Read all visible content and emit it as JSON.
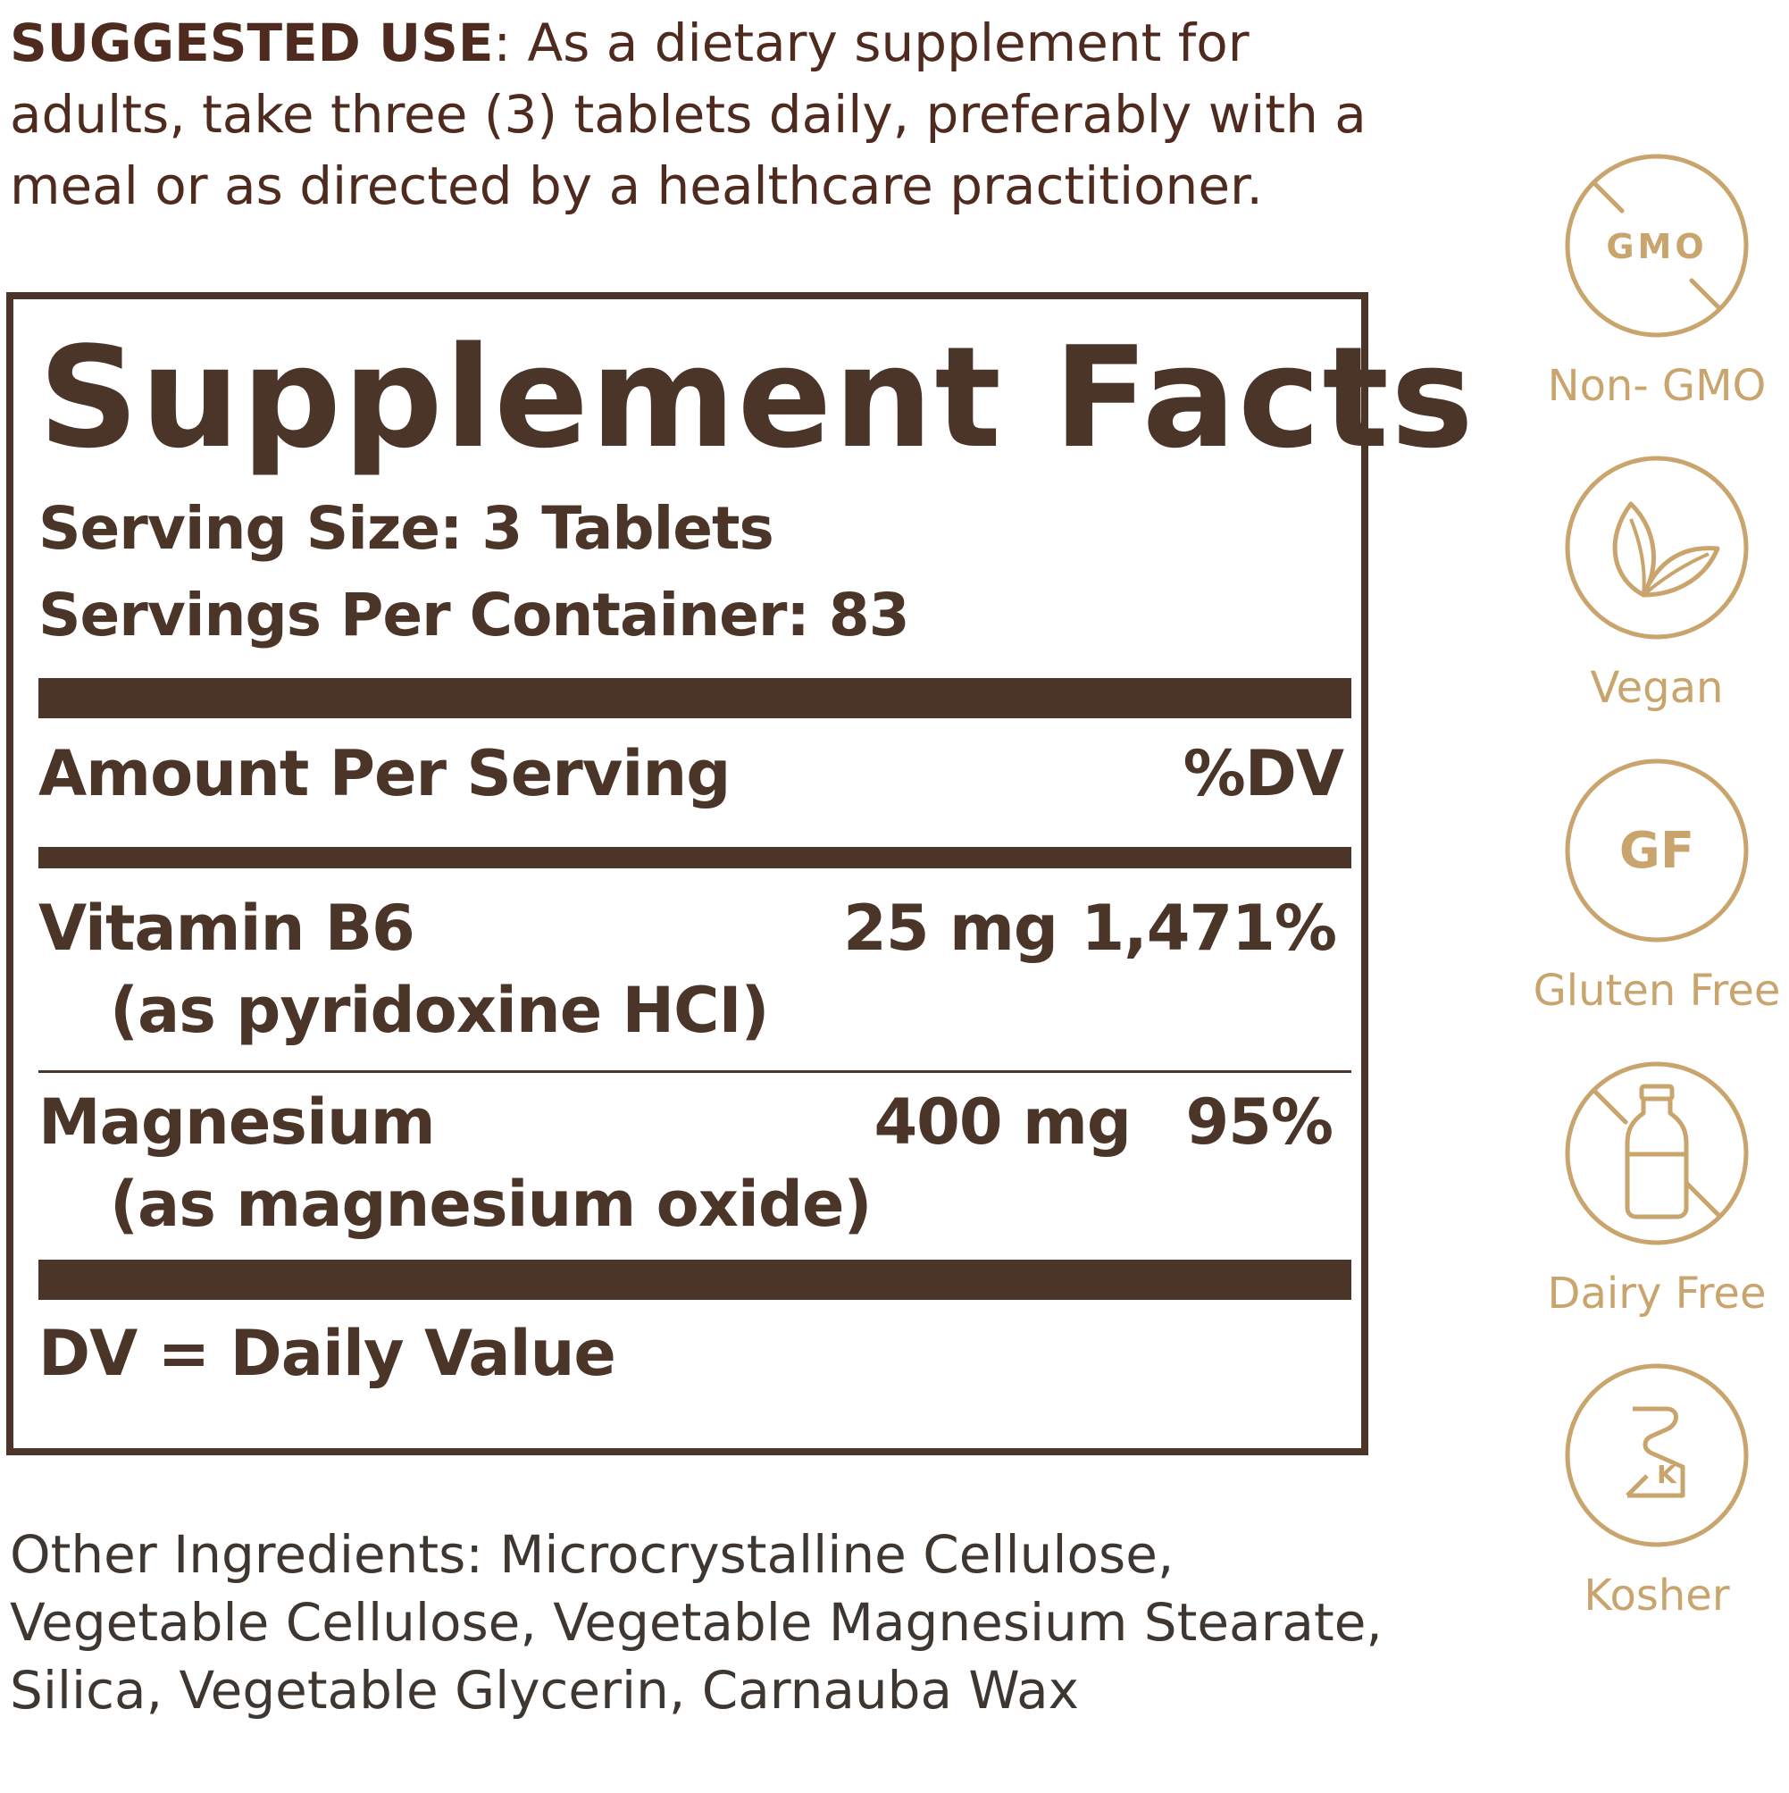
{
  "suggested_use": {
    "label": "SUGGESTED USE",
    "text": ": As a dietary supplement for adults, take three (3) tablets daily, preferably with a meal or as directed by a healthcare practitioner."
  },
  "facts": {
    "title": "Supplement Facts",
    "serving_size": "Serving Size: 3 Tablets",
    "servings_per_container": "Servings Per Container: 83",
    "amount_header": "Amount Per Serving",
    "dv_header": "%DV",
    "rows": [
      {
        "name": "Vitamin B6",
        "sub": "(as pyridoxine HCI)",
        "amount": "25 mg",
        "dv": "1,471%"
      },
      {
        "name": "Magnesium",
        "sub": "(as magnesium oxide)",
        "amount": "400 mg",
        "dv": "95%"
      }
    ],
    "footnote": "DV = Daily Value"
  },
  "other_ingredients": "Other Ingredients: Microcrystalline Cellulose, Vegetable Cellulose, Vegetable Magnesium Stearate, Silica, Vegetable Glycerin, Carnauba Wax",
  "badges": [
    {
      "icon": "gmo-crossed-icon",
      "icon_text": "GMO",
      "label": "Non- GMO"
    },
    {
      "icon": "leaf-icon",
      "label": "Vegan"
    },
    {
      "icon": "gf-icon",
      "icon_text": "GF",
      "label": "Gluten Free"
    },
    {
      "icon": "milk-bottle-crossed-icon",
      "label": "Dairy Free"
    },
    {
      "icon": "kosher-icon",
      "icon_text": "K",
      "label": "Kosher"
    }
  ],
  "colors": {
    "text_brown": "#4a3528",
    "badge_gold": "#c9a46d"
  }
}
